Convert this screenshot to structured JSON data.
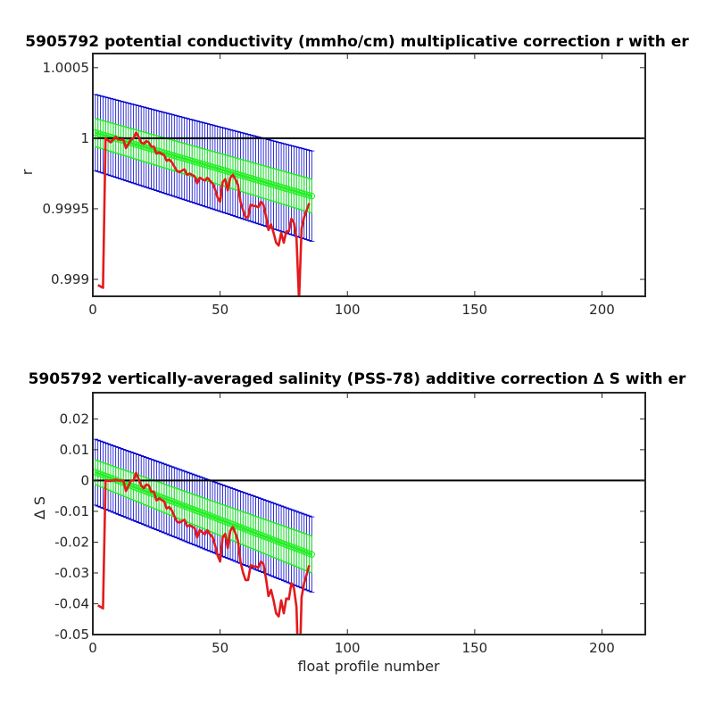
{
  "chart_data": [
    {
      "type": "line",
      "title": "5905792 potential conductivity (mmho/cm) multiplicative correction r with er",
      "xlabel": "",
      "ylabel": "r",
      "xlim": [
        0,
        217
      ],
      "ylim": [
        0.99888,
        1.0006
      ],
      "x_ticks": [
        0,
        50,
        100,
        150,
        200
      ],
      "x_tick_labels": [
        "0",
        "50",
        "100",
        "150",
        "200"
      ],
      "y_ticks": [
        0.999,
        0.9995,
        1,
        1.0005
      ],
      "y_tick_labels": [
        "0.999",
        "0.9995",
        "1",
        "1.0005"
      ],
      "reference_line": 1,
      "colors": {
        "errorbars": "#0000cc",
        "fit": "#22ee22",
        "correction": "#e31a1c",
        "reference": "#000000"
      },
      "series": [
        {
          "role": "fit_error_bars",
          "x_range": [
            1,
            86
          ],
          "center_start": 1.00004,
          "center_end": 0.99959,
          "halfwidth_start": 0.00027,
          "halfwidth_end": 0.00032
        },
        {
          "role": "fit_band",
          "x_range": [
            1,
            86
          ],
          "center_start": 1.00004,
          "center_end": 0.99959,
          "halfwidth_start": 0.0001,
          "halfwidth_end": 0.00012
        },
        {
          "role": "correction",
          "points": [
            [
              2,
              0.99896
            ],
            [
              4,
              0.99894
            ],
            [
              5,
              1.0
            ],
            [
              7,
              0.99997
            ],
            [
              9,
              1.00001
            ],
            [
              10,
              0.99999
            ],
            [
              12,
              0.99999
            ],
            [
              13,
              0.99993
            ],
            [
              15,
              0.99999
            ],
            [
              16,
              1.0
            ],
            [
              17,
              1.00004
            ],
            [
              18,
              1.00001
            ],
            [
              19,
              0.99997
            ],
            [
              20,
              0.99996
            ],
            [
              21,
              0.99998
            ],
            [
              22,
              0.99997
            ],
            [
              23,
              0.99994
            ],
            [
              24,
              0.99994
            ],
            [
              25,
              0.99989
            ],
            [
              26,
              0.9999
            ],
            [
              28,
              0.99988
            ],
            [
              29,
              0.99984
            ],
            [
              30,
              0.99985
            ],
            [
              31,
              0.99983
            ],
            [
              33,
              0.99977
            ],
            [
              34,
              0.99976
            ],
            [
              36,
              0.99978
            ],
            [
              37,
              0.99974
            ],
            [
              38,
              0.99975
            ],
            [
              40,
              0.99973
            ],
            [
              41,
              0.99968
            ],
            [
              42,
              0.99972
            ],
            [
              44,
              0.9997
            ],
            [
              45,
              0.99972
            ],
            [
              46,
              0.9997
            ],
            [
              47,
              0.99968
            ],
            [
              48,
              0.99964
            ],
            [
              49,
              0.99958
            ],
            [
              50,
              0.99955
            ],
            [
              51,
              0.99969
            ],
            [
              52,
              0.99971
            ],
            [
              53,
              0.99963
            ],
            [
              54,
              0.99972
            ],
            [
              55,
              0.99974
            ],
            [
              56,
              0.99971
            ],
            [
              57,
              0.99967
            ],
            [
              58,
              0.99955
            ],
            [
              59,
              0.99949
            ],
            [
              60,
              0.99944
            ],
            [
              61,
              0.99944
            ],
            [
              62,
              0.99953
            ],
            [
              63,
              0.99952
            ],
            [
              64,
              0.99952
            ],
            [
              65,
              0.99951
            ],
            [
              66,
              0.99955
            ],
            [
              67,
              0.99953
            ],
            [
              68,
              0.99945
            ],
            [
              69,
              0.99935
            ],
            [
              70,
              0.99939
            ],
            [
              71,
              0.99933
            ],
            [
              72,
              0.99926
            ],
            [
              73,
              0.99924
            ],
            [
              74,
              0.99933
            ],
            [
              75,
              0.99926
            ],
            [
              76,
              0.99934
            ],
            [
              77,
              0.99934
            ],
            [
              78,
              0.99943
            ],
            [
              79,
              0.9994
            ],
            [
              80,
              0.99929
            ],
            [
              81,
              0.99885
            ],
            [
              82,
              0.99936
            ],
            [
              83,
              0.99944
            ],
            [
              84,
              0.99949
            ],
            [
              85,
              0.99954
            ]
          ]
        }
      ]
    },
    {
      "type": "line",
      "title": "5905792 vertically-averaged salinity (PSS-78) additive correction ∆ S with er",
      "xlabel": "float profile number",
      "ylabel": "∆ S",
      "xlim": [
        0,
        217
      ],
      "ylim": [
        -0.05,
        0.0285
      ],
      "x_ticks": [
        0,
        50,
        100,
        150,
        200
      ],
      "x_tick_labels": [
        "0",
        "50",
        "100",
        "150",
        "200"
      ],
      "y_ticks": [
        -0.05,
        -0.04,
        -0.03,
        -0.02,
        -0.01,
        0,
        0.01,
        0.02
      ],
      "y_tick_labels": [
        "-0.05",
        "-0.04",
        "-0.03",
        "-0.02",
        "-0.01",
        "0",
        "0.01",
        "0.02"
      ],
      "reference_line": 0,
      "colors": {
        "errorbars": "#0000cc",
        "fit": "#22ee22",
        "correction": "#e31a1c",
        "reference": "#000000"
      },
      "series": [
        {
          "role": "fit_error_bars",
          "x_range": [
            1,
            86
          ],
          "center_start": 0.0027,
          "center_end": -0.024,
          "halfwidth_start": 0.0107,
          "halfwidth_end": 0.0122
        },
        {
          "role": "fit_band",
          "x_range": [
            1,
            86
          ],
          "center_start": 0.0027,
          "center_end": -0.024,
          "halfwidth_start": 0.004,
          "halfwidth_end": 0.006
        },
        {
          "role": "correction",
          "points": [
            [
              2,
              -0.0405
            ],
            [
              4,
              -0.0415
            ],
            [
              5,
              0.0
            ],
            [
              7,
              -0.0002
            ],
            [
              9,
              0.0003
            ],
            [
              10,
              0.0
            ],
            [
              12,
              0.0
            ],
            [
              13,
              -0.0034
            ],
            [
              15,
              0.0
            ],
            [
              16,
              0.0
            ],
            [
              17,
              0.0025
            ],
            [
              18,
              0.0005
            ],
            [
              19,
              -0.0016
            ],
            [
              20,
              -0.0025
            ],
            [
              21,
              -0.0013
            ],
            [
              22,
              -0.0016
            ],
            [
              23,
              -0.0036
            ],
            [
              24,
              -0.0036
            ],
            [
              25,
              -0.0065
            ],
            [
              26,
              -0.0058
            ],
            [
              28,
              -0.0068
            ],
            [
              29,
              -0.0091
            ],
            [
              30,
              -0.0086
            ],
            [
              31,
              -0.0097
            ],
            [
              33,
              -0.0133
            ],
            [
              34,
              -0.0137
            ],
            [
              36,
              -0.0127
            ],
            [
              37,
              -0.0149
            ],
            [
              38,
              -0.0145
            ],
            [
              40,
              -0.0155
            ],
            [
              41,
              -0.0185
            ],
            [
              42,
              -0.0161
            ],
            [
              44,
              -0.0175
            ],
            [
              45,
              -0.0161
            ],
            [
              46,
              -0.0175
            ],
            [
              47,
              -0.0183
            ],
            [
              48,
              -0.0209
            ],
            [
              49,
              -0.0243
            ],
            [
              50,
              -0.0263
            ],
            [
              51,
              -0.0185
            ],
            [
              52,
              -0.0173
            ],
            [
              53,
              -0.0219
            ],
            [
              54,
              -0.0163
            ],
            [
              55,
              -0.0151
            ],
            [
              56,
              -0.0171
            ],
            [
              57,
              -0.0195
            ],
            [
              58,
              -0.0263
            ],
            [
              59,
              -0.0299
            ],
            [
              60,
              -0.0323
            ],
            [
              61,
              -0.0323
            ],
            [
              62,
              -0.0275
            ],
            [
              63,
              -0.0279
            ],
            [
              64,
              -0.0279
            ],
            [
              65,
              -0.0283
            ],
            [
              66,
              -0.0263
            ],
            [
              67,
              -0.0271
            ],
            [
              68,
              -0.0317
            ],
            [
              69,
              -0.0375
            ],
            [
              70,
              -0.0355
            ],
            [
              71,
              -0.0389
            ],
            [
              72,
              -0.0431
            ],
            [
              73,
              -0.0441
            ],
            [
              74,
              -0.0389
            ],
            [
              75,
              -0.0431
            ],
            [
              76,
              -0.0383
            ],
            [
              77,
              -0.0385
            ],
            [
              78,
              -0.0333
            ],
            [
              79,
              -0.0349
            ],
            [
              80,
              -0.0411
            ],
            [
              81,
              -0.0685
            ],
            [
              82,
              -0.0379
            ],
            [
              83,
              -0.0333
            ],
            [
              84,
              -0.0305
            ],
            [
              85,
              -0.0275
            ]
          ]
        }
      ]
    }
  ]
}
